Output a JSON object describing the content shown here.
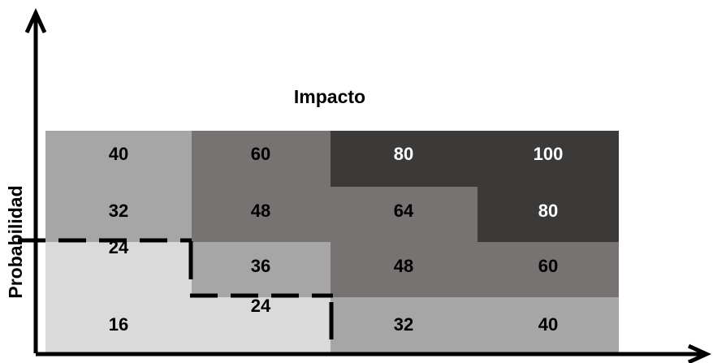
{
  "title": "Impacto",
  "ylabel": "Probabilidad",
  "matrix": {
    "rows": [
      {
        "values": [
          "40",
          "60",
          "80",
          "100"
        ],
        "shades": [
          "medium",
          "dark",
          "darkest",
          "darkest"
        ]
      },
      {
        "values": [
          "32",
          "48",
          "64",
          "80"
        ],
        "shades": [
          "medium",
          "dark",
          "dark",
          "darkest"
        ]
      },
      {
        "values": [
          "24",
          "36",
          "48",
          "60"
        ],
        "shades": [
          "light",
          "medium",
          "dark",
          "dark"
        ]
      },
      {
        "values": [
          "16",
          "24",
          "32",
          "40"
        ],
        "shades": [
          "light",
          "light",
          "medium",
          "medium"
        ]
      }
    ]
  },
  "colors": {
    "light": "#dadada",
    "medium": "#a6a6a6",
    "dark": "#777372",
    "darkest": "#3b3a39",
    "text_dark": "#000000",
    "text_light": "#ffffff",
    "axis": "#000000",
    "dashed_line": "#000000"
  }
}
